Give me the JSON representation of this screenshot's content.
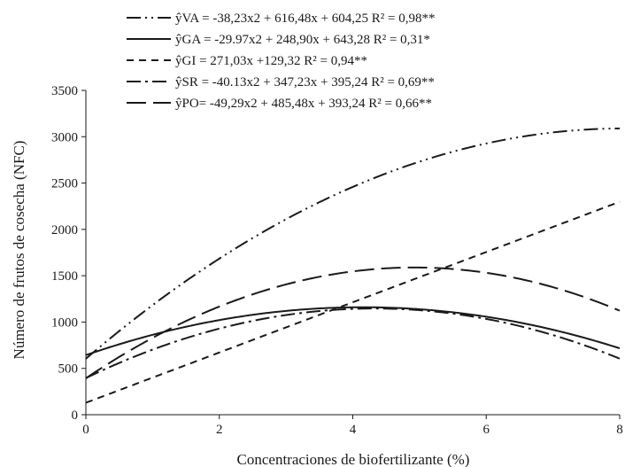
{
  "chart_data": {
    "type": "line",
    "xlabel": "Concentraciones de biofertilizante (%)",
    "ylabel": "Número de frutos de cosecha (NFC)",
    "xlim": [
      0,
      8
    ],
    "ylim": [
      0,
      3500
    ],
    "x_ticks": [
      "0",
      "2",
      "4",
      "6",
      "8"
    ],
    "y_ticks": [
      "0",
      "500",
      "1000",
      "1500",
      "2000",
      "2500",
      "3000",
      "3500"
    ],
    "grid": false,
    "legend_position": "top",
    "series": [
      {
        "legend": "ŷVA = -38,23x2 + 616,48x + 604,25  R² = 0,98**",
        "coefficients": [
          -38.23,
          616.48,
          604.25
        ],
        "dash": "dash-dot-dot"
      },
      {
        "legend": "ŷGA = -29.97x2 + 248,90x + 643,28  R² = 0,31*",
        "coefficients": [
          -29.97,
          248.9,
          643.28
        ],
        "dash": "solid"
      },
      {
        "legend": "ŷGI = 271,03x +129,32  R² = 0,94**",
        "coefficients": [
          0,
          271.03,
          129.32
        ],
        "dash": "short-dash"
      },
      {
        "legend": "ŷSR = -40.13x2 + 347,23x + 395,24  R² = 0,69**",
        "coefficients": [
          -40.13,
          347.23,
          395.24
        ],
        "dash": "dash-dot"
      },
      {
        "legend": "ŷPO= -49,29x2 + 485,48x + 393,24  R² = 0,66**",
        "coefficients": [
          -49.29,
          485.48,
          393.24
        ],
        "dash": "long-dash"
      }
    ]
  },
  "styles": {
    "dash-dot-dot": "16,5,2,5,2,5",
    "solid": "",
    "short-dash": "8,6",
    "dash-dot": "16,5,3,5",
    "long-dash": "22,8"
  },
  "colors": {
    "line": "#1a1a1a",
    "axis": "#1a1a1a"
  }
}
